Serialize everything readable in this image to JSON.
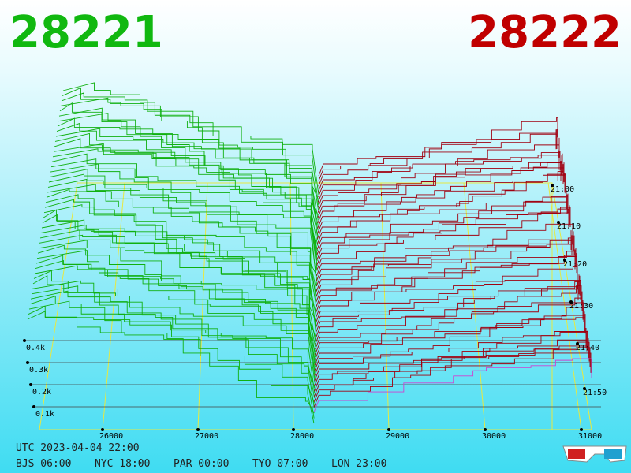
{
  "header": {
    "bid": "28221",
    "ask": "28222"
  },
  "axes": {
    "price_ticks": [
      "26000",
      "27000",
      "28000",
      "29000",
      "30000",
      "31000"
    ],
    "depth_ticks": [
      "0.1k",
      "0.2k",
      "0.3k",
      "0.4k"
    ],
    "time_ticks": [
      "21:00",
      "21:10",
      "21:20",
      "21:30",
      "21:40",
      "21:50"
    ]
  },
  "footer": {
    "utc": "UTC 2023-04-04 22:00",
    "zones": [
      "BJS 06:00",
      "NYC 18:00",
      "PAR 00:00",
      "TYO 07:00",
      "LON 23:00"
    ]
  }
}
